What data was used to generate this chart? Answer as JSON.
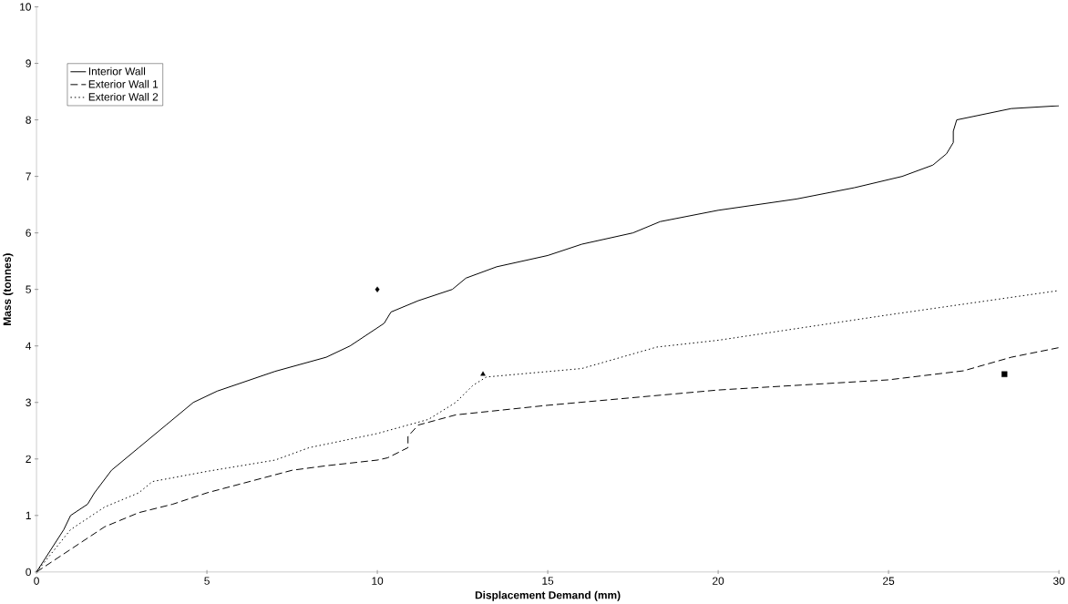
{
  "chart_data": {
    "type": "line",
    "xlabel": "Displacement Demand (mm)",
    "ylabel": "Mass (tonnes)",
    "xlim": [
      0,
      30
    ],
    "ylim": [
      0,
      10
    ],
    "xticks": [
      0,
      5,
      10,
      15,
      20,
      25,
      30
    ],
    "yticks": [
      0,
      1,
      2,
      3,
      4,
      5,
      6,
      7,
      8,
      9,
      10
    ],
    "legend": "top left",
    "grid": false,
    "series": [
      {
        "name": "Interior Wall",
        "color": "#000000",
        "line_style": "solid",
        "x": [
          0,
          0.8,
          1,
          1.5,
          1.7,
          2.2,
          3,
          3.8,
          4.6,
          5.3,
          7,
          8.5,
          9.2,
          10.2,
          10.4,
          11.2,
          12.2,
          12.6,
          13.5,
          15,
          16,
          17.5,
          18.3,
          20,
          22.3,
          24,
          25.4,
          26.3,
          26.7,
          26.9,
          26.9,
          27,
          28.6,
          30
        ],
        "values": [
          0,
          0.75,
          1,
          1.2,
          1.4,
          1.8,
          2.2,
          2.6,
          3,
          3.2,
          3.55,
          3.8,
          4,
          4.4,
          4.6,
          4.8,
          5,
          5.2,
          5.4,
          5.6,
          5.8,
          6,
          6.2,
          6.4,
          6.6,
          6.8,
          7,
          7.2,
          7.4,
          7.6,
          7.8,
          8,
          8.2,
          8.25
        ]
      },
      {
        "name": "Exterior Wall 1",
        "color": "#000000",
        "line_style": "dashed",
        "x": [
          0,
          1,
          2,
          3,
          4,
          5,
          7.5,
          8.5,
          10,
          10.3,
          10.9,
          10.9,
          11.2,
          12.3,
          15,
          20,
          25,
          27.2,
          28.6,
          30
        ],
        "values": [
          0,
          0.4,
          0.8,
          1.05,
          1.2,
          1.4,
          1.8,
          1.88,
          1.98,
          2.02,
          2.2,
          2.4,
          2.6,
          2.78,
          2.95,
          3.22,
          3.4,
          3.56,
          3.8,
          3.97
        ]
      },
      {
        "name": "Exterior Wall 2",
        "color": "#000000",
        "line_style": "dotted",
        "x": [
          0,
          1,
          1.5,
          2,
          3,
          3.4,
          5,
          7,
          8,
          10,
          11.5,
          12.3,
          12.8,
          13.2,
          16,
          18.2,
          20,
          25,
          30
        ],
        "values": [
          0,
          0.75,
          0.95,
          1.15,
          1.4,
          1.6,
          1.78,
          1.98,
          2.2,
          2.45,
          2.7,
          3.0,
          3.3,
          3.45,
          3.6,
          3.98,
          4.1,
          4.55,
          4.98
        ]
      },
      {
        "type": "scatter",
        "marker": "diamond",
        "color": "#000000",
        "x": [
          10
        ],
        "values": [
          5
        ]
      },
      {
        "type": "scatter",
        "marker": "triangle",
        "color": "#000000",
        "x": [
          13.1
        ],
        "values": [
          3.5
        ]
      },
      {
        "type": "scatter",
        "marker": "square",
        "color": "#000000",
        "x": [
          28.4
        ],
        "values": [
          3.5
        ]
      }
    ]
  }
}
